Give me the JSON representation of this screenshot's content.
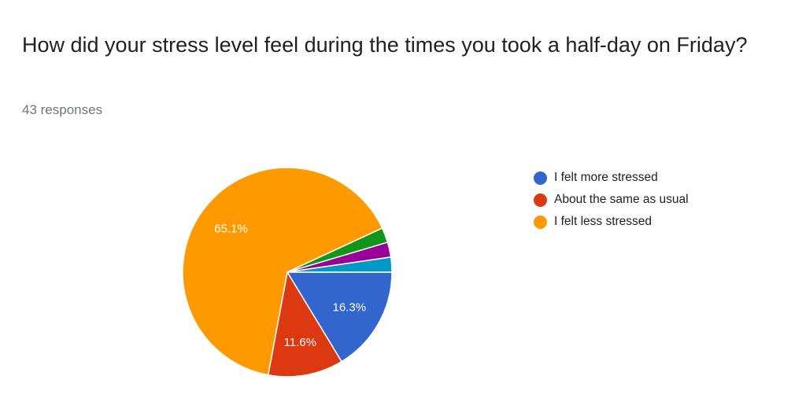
{
  "header": {
    "question": "How did your stress level feel during the times you took a half-day on Friday?",
    "responses": "43 responses"
  },
  "chart_data": {
    "type": "pie",
    "title": "How did your stress level feel during the times you took a half-day on Friday?",
    "total_responses": 43,
    "categories": [
      "I felt more stressed",
      "About the same as usual",
      "I felt less stressed",
      "",
      "",
      ""
    ],
    "values": [
      16.3,
      11.6,
      65.1,
      2.3,
      2.3,
      2.3
    ],
    "labels": [
      "16.3%",
      "11.6%",
      "65.1%",
      "",
      "",
      ""
    ],
    "colors": [
      "#3366cc",
      "#dc3912",
      "#ff9900",
      "#109618",
      "#990099",
      "#0099c6"
    ],
    "legend": {
      "position": "right",
      "entries": [
        "I felt more stressed",
        "About the same as usual",
        "I felt less stressed"
      ]
    }
  }
}
